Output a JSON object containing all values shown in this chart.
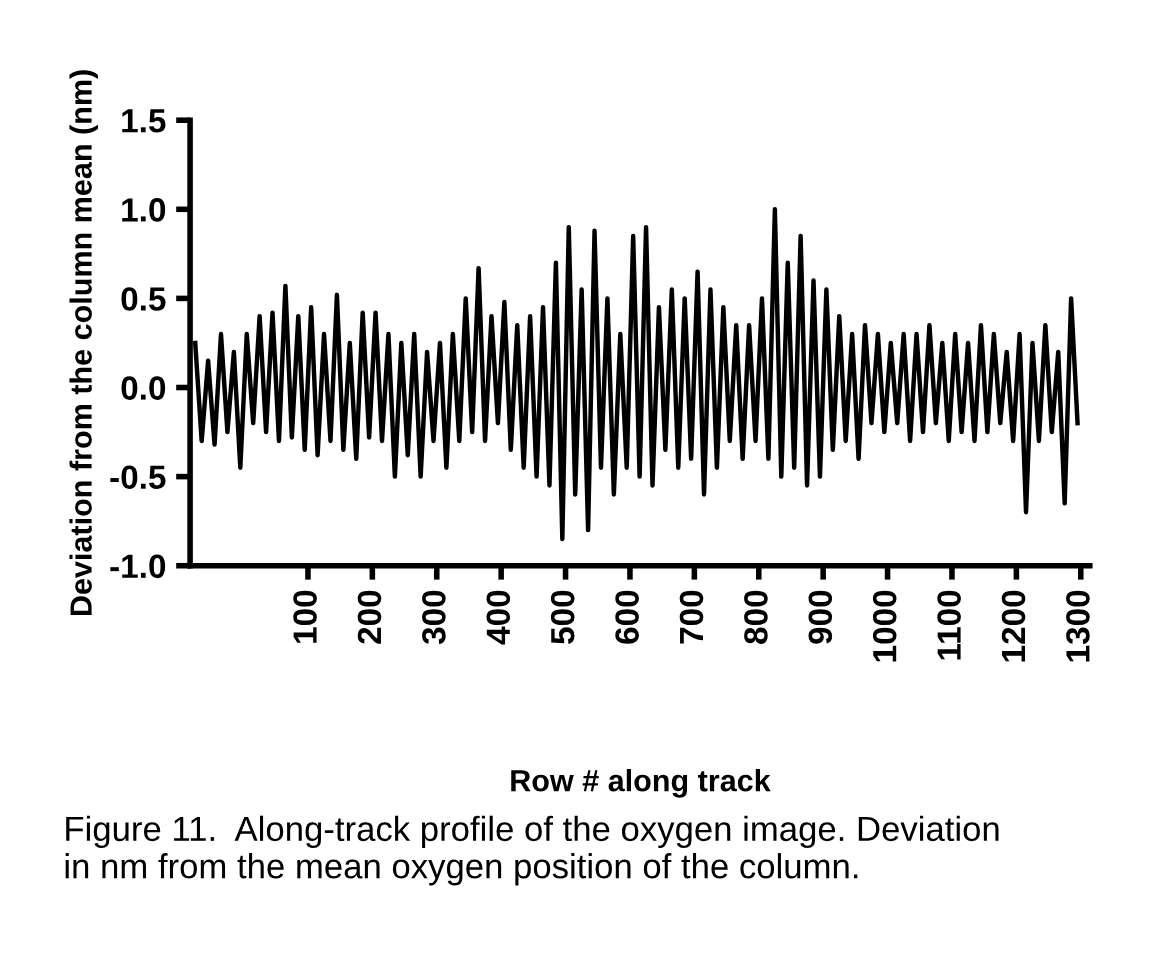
{
  "chart_data": {
    "type": "line",
    "xlabel": "Row # along track",
    "ylabel": "Deviation from the column mean (nm)",
    "annotations": [
      "Figure 11.  Along-track profile of the oxygen image. Deviation\nin nm from the mean oxygen position of the column."
    ],
    "xlim": [
      -83,
      1314
    ],
    "xticks": [
      100,
      200,
      300,
      400,
      500,
      600,
      700,
      800,
      900,
      1000,
      1100,
      1200,
      1300
    ],
    "ylim": [
      -1.0,
      1.5
    ],
    "yticks": [
      {
        "value": -1.0,
        "label": "-1.0"
      },
      {
        "value": -0.5,
        "label": "-0.5"
      },
      {
        "value": 0.0,
        "label": "0.0"
      },
      {
        "value": 0.5,
        "label": "0.5"
      },
      {
        "value": 1.0,
        "label": "1.0"
      },
      {
        "value": 1.5,
        "label": "1.5"
      }
    ],
    "grid": false,
    "legend": false,
    "marker": "none",
    "line_style": "solid",
    "series": [
      {
        "color": "#000000",
        "x": [
          -75,
          -65,
          -55,
          -45,
          -35,
          -25,
          -15,
          -5,
          5,
          15,
          25,
          35,
          45,
          55,
          65,
          75,
          85,
          95,
          105,
          115,
          125,
          135,
          145,
          155,
          165,
          175,
          185,
          195,
          205,
          215,
          225,
          235,
          245,
          255,
          265,
          275,
          285,
          295,
          305,
          315,
          325,
          335,
          345,
          355,
          365,
          375,
          385,
          395,
          405,
          415,
          425,
          435,
          445,
          455,
          465,
          475,
          485,
          495,
          505,
          515,
          525,
          535,
          545,
          555,
          565,
          575,
          585,
          595,
          605,
          615,
          625,
          635,
          645,
          655,
          665,
          675,
          685,
          695,
          705,
          715,
          725,
          735,
          745,
          755,
          765,
          775,
          785,
          795,
          805,
          815,
          825,
          835,
          845,
          855,
          865,
          875,
          885,
          895,
          905,
          915,
          925,
          935,
          945,
          955,
          965,
          975,
          985,
          995,
          1005,
          1015,
          1025,
          1035,
          1045,
          1055,
          1065,
          1075,
          1085,
          1095,
          1105,
          1115,
          1125,
          1135,
          1145,
          1155,
          1165,
          1175,
          1185,
          1195,
          1205,
          1215,
          1225,
          1235,
          1245,
          1255,
          1265,
          1275,
          1285,
          1295
        ],
        "values": [
          0.25,
          -0.3,
          0.15,
          -0.32,
          0.3,
          -0.25,
          0.2,
          -0.45,
          0.3,
          -0.2,
          0.4,
          -0.25,
          0.42,
          -0.3,
          0.57,
          -0.28,
          0.4,
          -0.35,
          0.45,
          -0.38,
          0.3,
          -0.3,
          0.52,
          -0.35,
          0.25,
          -0.4,
          0.42,
          -0.28,
          0.42,
          -0.3,
          0.3,
          -0.5,
          0.25,
          -0.38,
          0.3,
          -0.5,
          0.2,
          -0.3,
          0.25,
          -0.45,
          0.3,
          -0.3,
          0.5,
          -0.25,
          0.67,
          -0.3,
          0.4,
          -0.2,
          0.48,
          -0.35,
          0.35,
          -0.45,
          0.4,
          -0.5,
          0.45,
          -0.55,
          0.7,
          -0.85,
          0.9,
          -0.6,
          0.55,
          -0.8,
          0.88,
          -0.45,
          0.5,
          -0.6,
          0.3,
          -0.45,
          0.85,
          -0.5,
          0.9,
          -0.55,
          0.45,
          -0.35,
          0.55,
          -0.45,
          0.5,
          -0.4,
          0.65,
          -0.6,
          0.55,
          -0.45,
          0.45,
          -0.3,
          0.35,
          -0.4,
          0.35,
          -0.3,
          0.5,
          -0.4,
          1.0,
          -0.5,
          0.7,
          -0.45,
          0.85,
          -0.55,
          0.6,
          -0.5,
          0.55,
          -0.35,
          0.4,
          -0.3,
          0.3,
          -0.4,
          0.35,
          -0.2,
          0.3,
          -0.25,
          0.25,
          -0.2,
          0.3,
          -0.3,
          0.3,
          -0.25,
          0.35,
          -0.2,
          0.25,
          -0.3,
          0.3,
          -0.25,
          0.25,
          -0.3,
          0.35,
          -0.25,
          0.3,
          -0.2,
          0.2,
          -0.3,
          0.3,
          -0.7,
          0.25,
          -0.3,
          0.35,
          -0.25,
          0.2,
          -0.65,
          0.5,
          -0.2
        ]
      }
    ]
  }
}
